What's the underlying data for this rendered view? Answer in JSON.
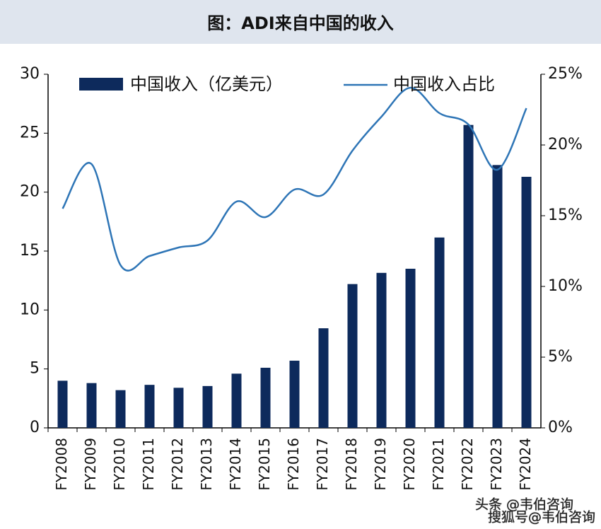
{
  "chart_data": {
    "type": "bar-line",
    "title": "图：ADI来自中国的收入",
    "categories": [
      "FY2008",
      "FY2009",
      "FY2010",
      "FY2011",
      "FY2012",
      "FY2013",
      "FY2014",
      "FY2015",
      "FY2016",
      "FY2017",
      "FY2018",
      "FY2019",
      "FY2020",
      "FY2021",
      "FY2022",
      "FY2023",
      "FY2024"
    ],
    "series": [
      {
        "name": "中国收入（亿美元）",
        "type": "bar",
        "color": "#0d2a5c",
        "values": [
          4.0,
          3.8,
          3.2,
          3.65,
          3.4,
          3.55,
          4.6,
          5.1,
          5.7,
          8.45,
          12.2,
          13.15,
          13.5,
          16.15,
          25.7,
          22.3,
          21.3
        ]
      },
      {
        "name": "中国收入占比",
        "type": "line",
        "axis": "y2",
        "color": "#2e75b6",
        "values": [
          15.5,
          18.65,
          11.5,
          12.15,
          12.75,
          13.25,
          16.0,
          14.9,
          16.85,
          16.5,
          19.6,
          22.0,
          24.05,
          22.25,
          21.45,
          18.25,
          22.6
        ]
      }
    ],
    "ylim": [
      0,
      30
    ],
    "yticks": [
      0,
      5,
      10,
      15,
      20,
      25,
      30
    ],
    "y2lim": [
      0,
      25
    ],
    "y2ticks": [
      {
        "value": 0,
        "label": "0%"
      },
      {
        "value": 5,
        "label": "5%"
      },
      {
        "value": 10,
        "label": "10%"
      },
      {
        "value": 15,
        "label": "15%"
      },
      {
        "value": 20,
        "label": "20%"
      },
      {
        "value": 25,
        "label": "25%"
      }
    ],
    "annotations": [
      "头条 @韦伯咨询",
      "搜狐号@韦伯咨询"
    ]
  }
}
